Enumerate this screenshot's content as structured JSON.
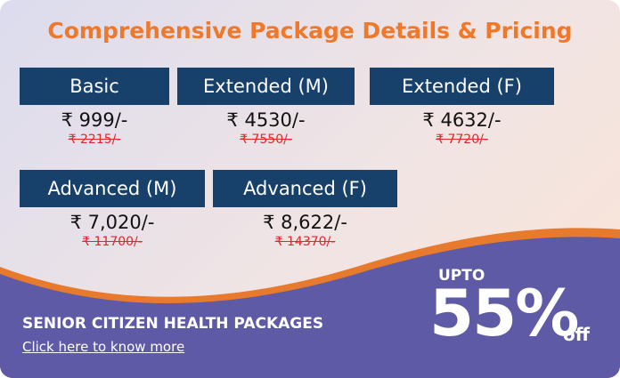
{
  "header": {
    "title": "Comprehensive Package Details & Pricing"
  },
  "packages": [
    {
      "name": "Basic",
      "price": "₹ 999/-",
      "old_price": "₹ 2215/-"
    },
    {
      "name": "Extended (M)",
      "price": "₹ 4530/-",
      "old_price": "₹ 7550/-"
    },
    {
      "name": "Extended (F)",
      "price": "₹ 4632/-",
      "old_price": "₹ 7720/-"
    },
    {
      "name": "Advanced (M)",
      "price": "₹ 7,020/-",
      "old_price": "₹ 11700/-"
    },
    {
      "name": "Advanced (F)",
      "price": "₹ 8,622/-",
      "old_price": "₹ 14370/-"
    }
  ],
  "banner": {
    "title": "SENIOR CITIZEN HEALTH PACKAGES",
    "link": "Click here to know more"
  },
  "discount": {
    "prefix": "UPTO",
    "value": "55%",
    "suffix": "off"
  }
}
